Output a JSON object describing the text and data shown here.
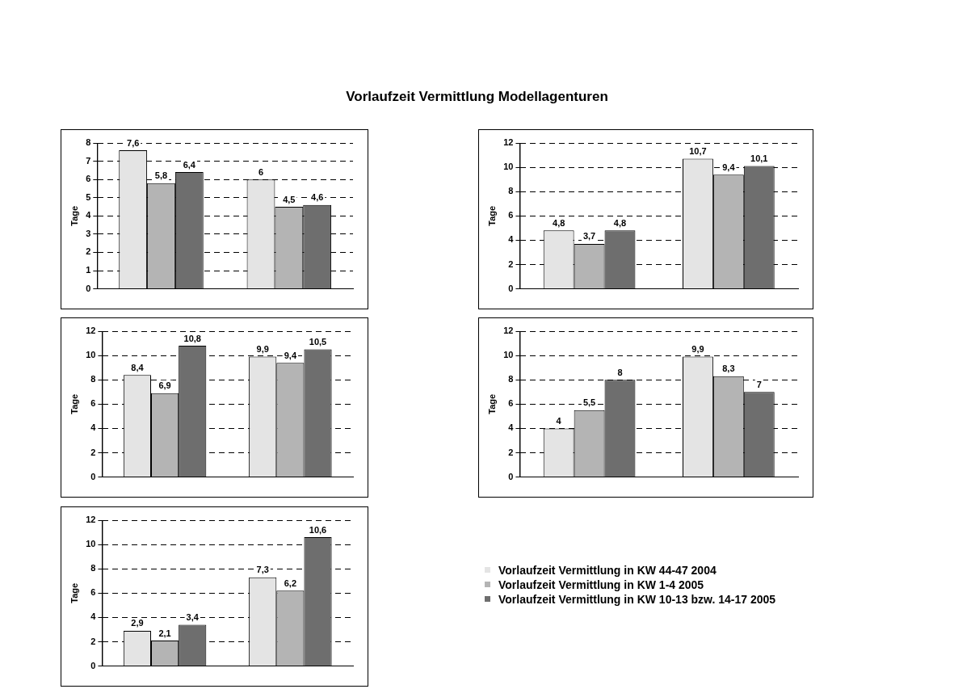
{
  "chart_data": [
    {
      "type": "bar",
      "title": "Vorlaufzeit Vermittlung Modellagenturen",
      "ylabel": "Tage",
      "categories": [
        null,
        null
      ],
      "ylim": [
        0,
        8
      ],
      "yticks": [
        0,
        1,
        2,
        3,
        4,
        5,
        6,
        7,
        8
      ],
      "grid": "y",
      "series": [
        {
          "color": "#e4e4e4",
          "values": [
            7.6,
            6
          ],
          "value_labels": [
            "7,6",
            "6"
          ]
        },
        {
          "color": "#b4b4b4",
          "values": [
            5.8,
            4.5
          ],
          "value_labels": [
            "5,8",
            "4,5"
          ]
        },
        {
          "color": "#6e6e6e",
          "values": [
            6.4,
            4.6
          ],
          "value_labels": [
            "6,4",
            "4,6"
          ]
        }
      ]
    },
    {
      "type": "bar",
      "ylabel": "Tage",
      "categories": [
        null,
        null
      ],
      "ylim": [
        0,
        12
      ],
      "yticks": [
        0,
        2,
        4,
        6,
        8,
        10,
        12
      ],
      "grid": "y",
      "series": [
        {
          "color": "#e4e4e4",
          "values": [
            4.8,
            10.7
          ],
          "value_labels": [
            "4,8",
            "10,7"
          ]
        },
        {
          "color": "#b4b4b4",
          "values": [
            3.7,
            9.4
          ],
          "value_labels": [
            "3,7",
            "9,4"
          ]
        },
        {
          "color": "#6e6e6e",
          "values": [
            4.8,
            10.1
          ],
          "value_labels": [
            "4,8",
            "10,1"
          ]
        }
      ]
    },
    {
      "type": "bar",
      "ylabel": "Tage",
      "categories": [
        null,
        null
      ],
      "ylim": [
        0,
        12
      ],
      "yticks": [
        0,
        2,
        4,
        6,
        8,
        10,
        12
      ],
      "grid": "y",
      "series": [
        {
          "color": "#e4e4e4",
          "values": [
            8.4,
            9.9
          ],
          "value_labels": [
            "8,4",
            "9,9"
          ]
        },
        {
          "color": "#b4b4b4",
          "values": [
            6.9,
            9.4
          ],
          "value_labels": [
            "6,9",
            "9,4"
          ]
        },
        {
          "color": "#6e6e6e",
          "values": [
            10.8,
            10.5
          ],
          "value_labels": [
            "10,8",
            "10,5"
          ]
        }
      ]
    },
    {
      "type": "bar",
      "ylabel": "Tage",
      "categories": [
        null,
        null
      ],
      "ylim": [
        0,
        12
      ],
      "yticks": [
        0,
        2,
        4,
        6,
        8,
        10,
        12
      ],
      "grid": "y",
      "series": [
        {
          "color": "#e4e4e4",
          "values": [
            4,
            9.9
          ],
          "value_labels": [
            "4",
            "9,9"
          ]
        },
        {
          "color": "#b4b4b4",
          "values": [
            5.5,
            8.3
          ],
          "value_labels": [
            "5,5",
            "8,3"
          ]
        },
        {
          "color": "#6e6e6e",
          "values": [
            8,
            7
          ],
          "value_labels": [
            "8",
            "7"
          ]
        }
      ]
    },
    {
      "type": "bar",
      "ylabel": "Tage",
      "categories": [
        null,
        null
      ],
      "ylim": [
        0,
        12
      ],
      "yticks": [
        0,
        2,
        4,
        6,
        8,
        10,
        12
      ],
      "grid": "y",
      "legend": "right",
      "series": [
        {
          "name": "Vorlaufzeit Vermittlung in KW 44-47 2004",
          "color": "#e4e4e4",
          "values": [
            2.9,
            7.3
          ],
          "value_labels": [
            "2,9",
            "7,3"
          ]
        },
        {
          "name": "Vorlaufzeit Vermittlung in KW 1-4 2005",
          "color": "#b4b4b4",
          "values": [
            2.1,
            6.2
          ],
          "value_labels": [
            "2,1",
            "6,2"
          ]
        },
        {
          "name": "Vorlaufzeit Vermittlung in KW 10-13 bzw. 14-17 2005",
          "color": "#6e6e6e",
          "values": [
            3.4,
            10.6
          ],
          "value_labels": [
            "3,4",
            "10,6"
          ]
        }
      ]
    }
  ]
}
